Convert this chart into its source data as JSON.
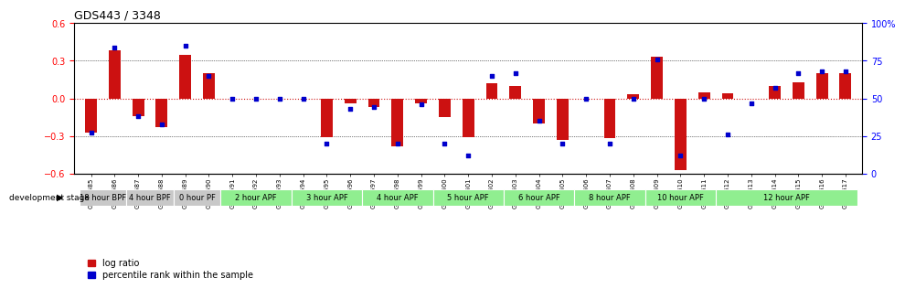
{
  "title": "GDS443 / 3348",
  "samples": [
    "GSM4585",
    "GSM4586",
    "GSM4587",
    "GSM4588",
    "GSM4589",
    "GSM4590",
    "GSM4591",
    "GSM4592",
    "GSM4593",
    "GSM4594",
    "GSM4595",
    "GSM4596",
    "GSM4597",
    "GSM4598",
    "GSM4599",
    "GSM4600",
    "GSM4601",
    "GSM4602",
    "GSM4603",
    "GSM4604",
    "GSM4605",
    "GSM4606",
    "GSM4607",
    "GSM4608",
    "GSM4609",
    "GSM4610",
    "GSM4611",
    "GSM4612",
    "GSM4613",
    "GSM4614",
    "GSM4615",
    "GSM4616",
    "GSM4617"
  ],
  "log_ratio": [
    -0.27,
    0.38,
    -0.14,
    -0.23,
    0.35,
    0.2,
    0.0,
    0.0,
    0.0,
    0.0,
    -0.31,
    -0.04,
    -0.07,
    -0.38,
    -0.04,
    -0.15,
    -0.31,
    0.12,
    0.1,
    -0.2,
    -0.33,
    0.0,
    -0.32,
    0.03,
    0.33,
    -0.57,
    0.05,
    0.04,
    0.0,
    0.1,
    0.13,
    0.2,
    0.2
  ],
  "percentile": [
    27,
    84,
    38,
    33,
    85,
    65,
    50,
    50,
    50,
    50,
    20,
    43,
    44,
    20,
    46,
    20,
    12,
    65,
    67,
    35,
    20,
    50,
    20,
    50,
    76,
    12,
    50,
    26,
    47,
    57,
    67,
    68,
    68
  ],
  "stages": [
    {
      "label": "18 hour BPF",
      "start": 0,
      "end": 2,
      "color": "#c8c8c8"
    },
    {
      "label": "4 hour BPF",
      "start": 2,
      "end": 4,
      "color": "#c8c8c8"
    },
    {
      "label": "0 hour PF",
      "start": 4,
      "end": 6,
      "color": "#c8c8c8"
    },
    {
      "label": "2 hour APF",
      "start": 6,
      "end": 9,
      "color": "#90ee90"
    },
    {
      "label": "3 hour APF",
      "start": 9,
      "end": 12,
      "color": "#90ee90"
    },
    {
      "label": "4 hour APF",
      "start": 12,
      "end": 15,
      "color": "#90ee90"
    },
    {
      "label": "5 hour APF",
      "start": 15,
      "end": 18,
      "color": "#90ee90"
    },
    {
      "label": "6 hour APF",
      "start": 18,
      "end": 21,
      "color": "#90ee90"
    },
    {
      "label": "8 hour APF",
      "start": 21,
      "end": 24,
      "color": "#90ee90"
    },
    {
      "label": "10 hour APF",
      "start": 24,
      "end": 27,
      "color": "#90ee90"
    },
    {
      "label": "12 hour APF",
      "start": 27,
      "end": 33,
      "color": "#90ee90"
    }
  ],
  "ylim_left": [
    -0.6,
    0.6
  ],
  "ylim_right": [
    0,
    100
  ],
  "yticks_left": [
    -0.6,
    -0.3,
    0.0,
    0.3,
    0.6
  ],
  "yticks_right": [
    0,
    25,
    50,
    75,
    100
  ],
  "bar_color": "#cc1111",
  "dot_color": "#0000cc",
  "zero_line_color": "#cc1111",
  "bg_color": "#ffffff",
  "legend_labels": [
    "log ratio",
    "percentile rank within the sample"
  ]
}
